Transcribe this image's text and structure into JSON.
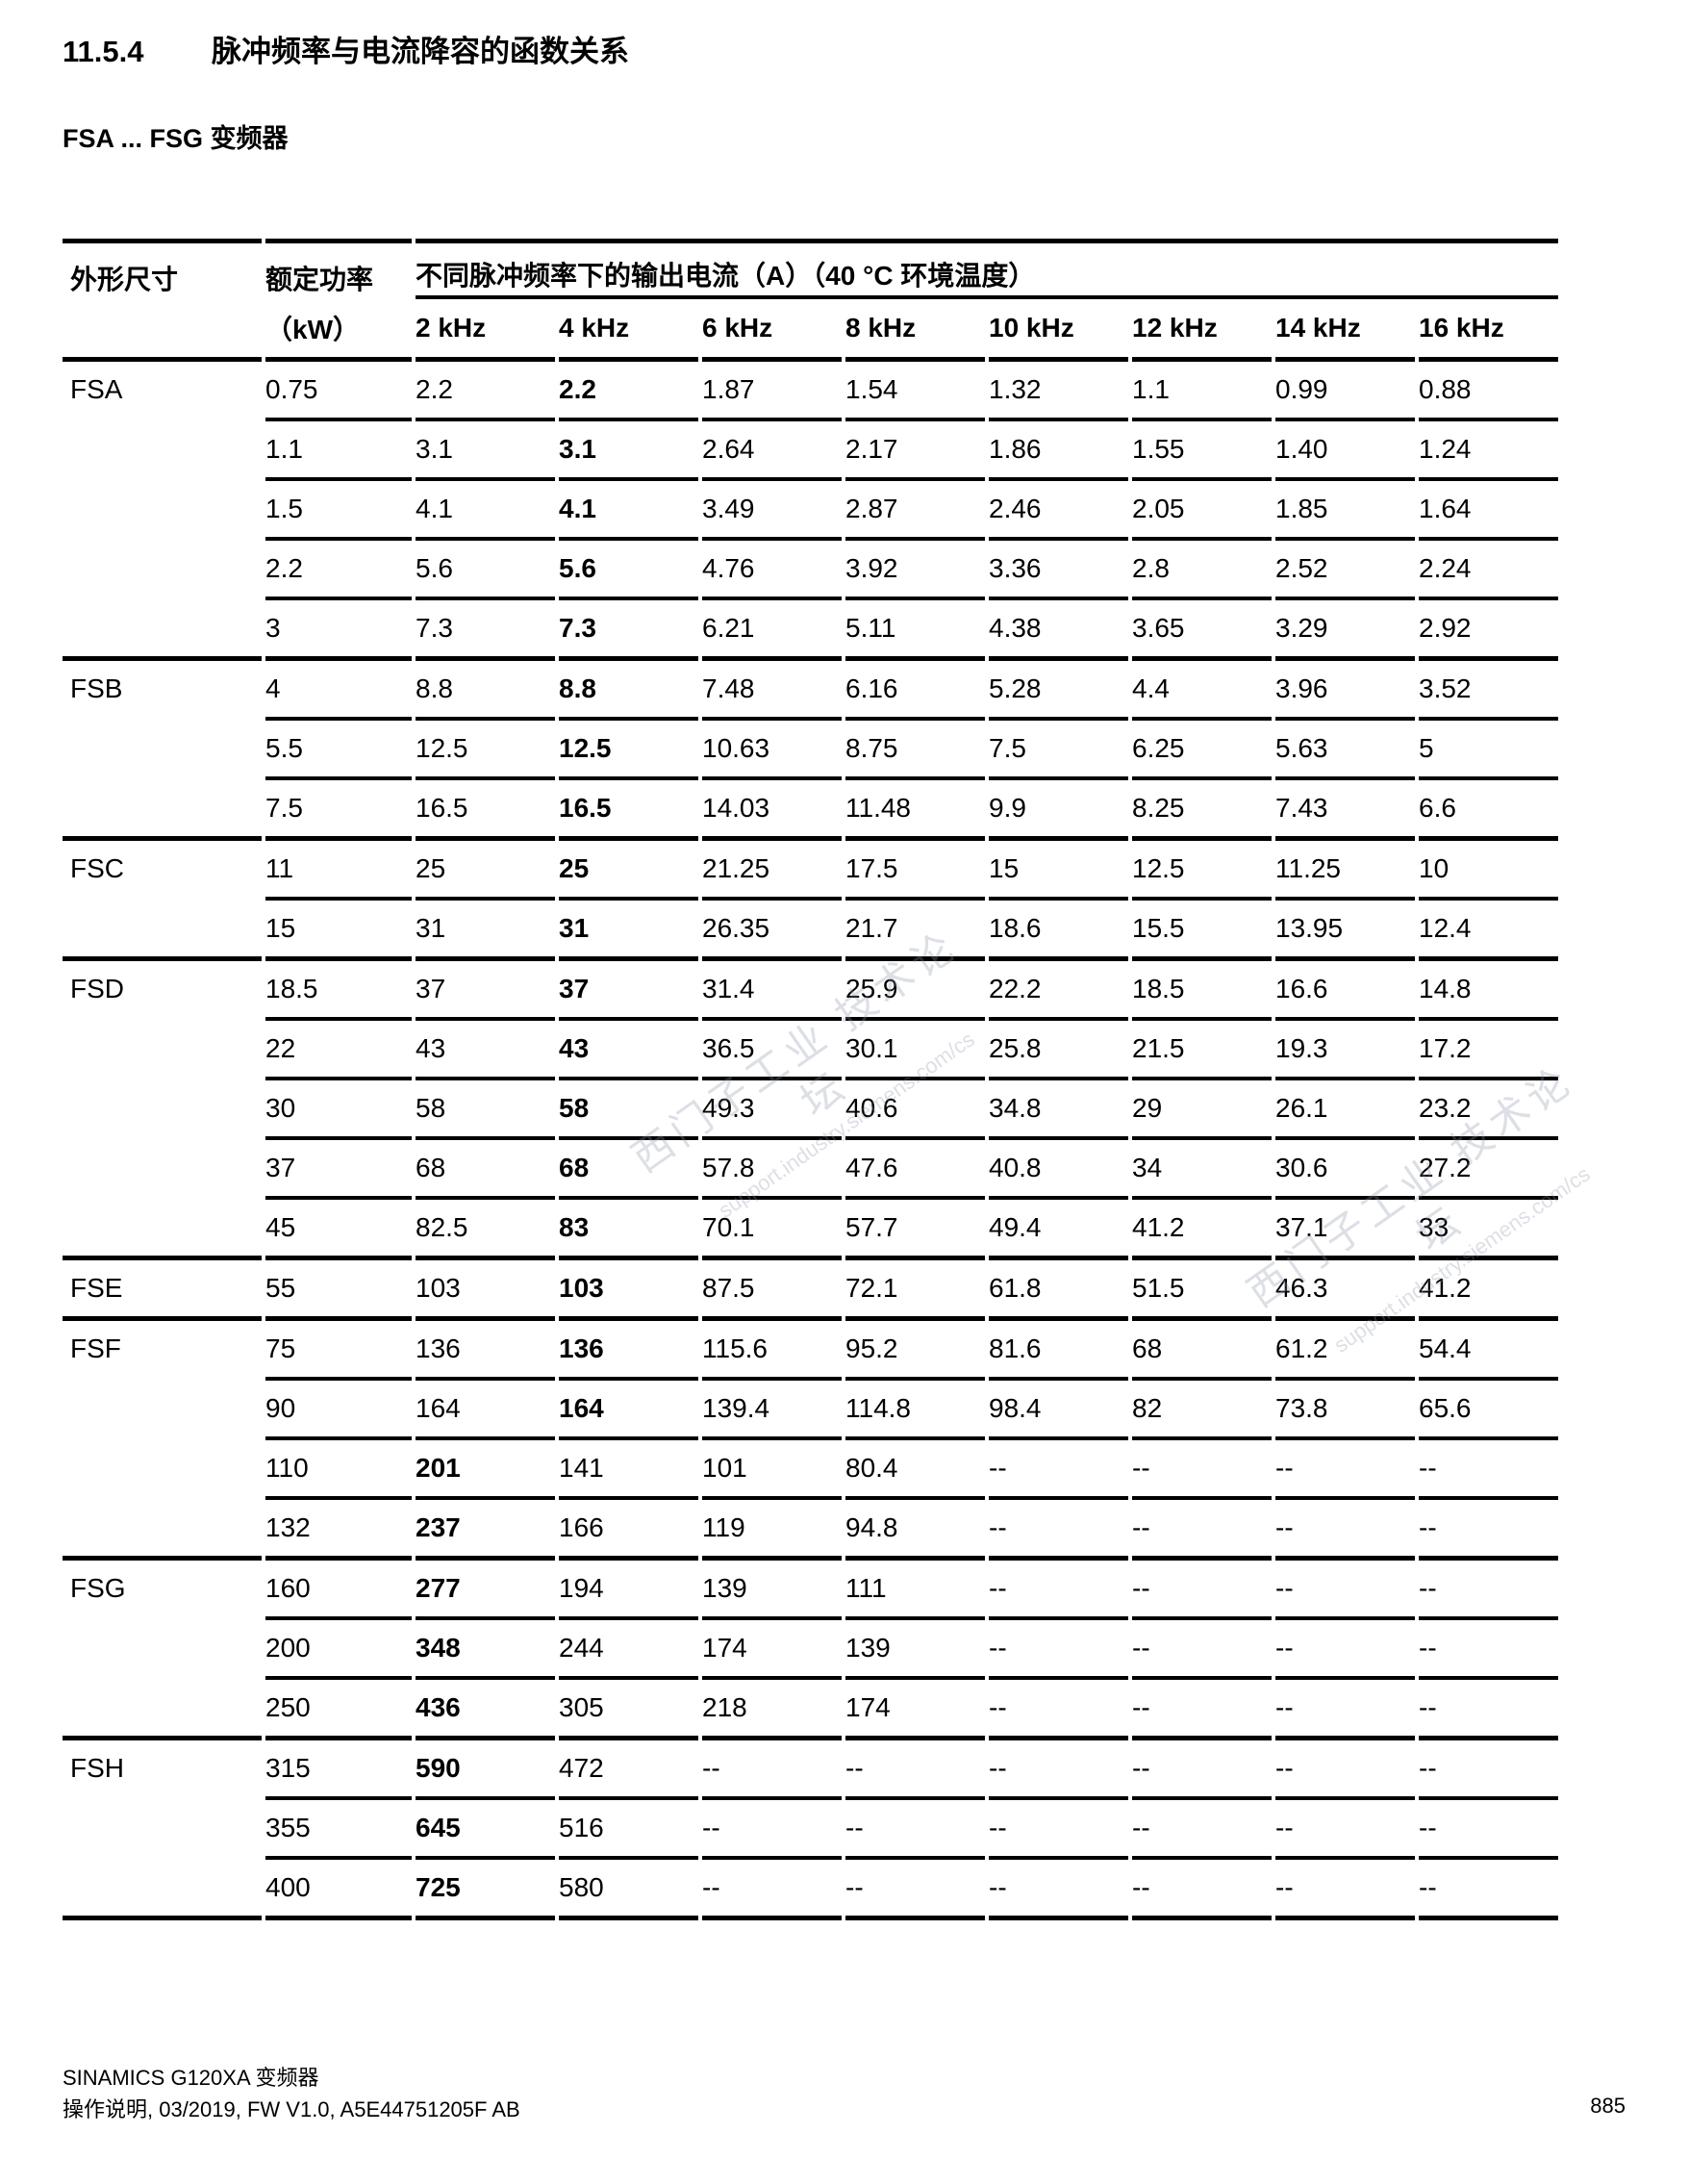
{
  "page": {
    "section_number": "11.5.4",
    "section_title": "脉冲频率与电流降容的函数关系",
    "subtitle": "FSA ... FSG 变频器",
    "footer_line1": "SINAMICS G120XA 变频器",
    "footer_line2": "操作说明, 03/2019, FW V1.0, A5E44751205F AB",
    "page_number": "885"
  },
  "watermark": {
    "line1": "西门子工业 技术论坛",
    "line2": "support.industry.siemens.com/cs"
  },
  "table": {
    "col_frame": "外形尺寸",
    "col_power_line1": "额定功率",
    "col_power_line2": "（kW）",
    "col_span": "不同脉冲频率下的输出电流（A）（40 °C 环境温度）",
    "freq_headers": [
      "2 kHz",
      "4 kHz",
      "6 kHz",
      "8 kHz",
      "10 kHz",
      "12 kHz",
      "14 kHz",
      "16 kHz"
    ],
    "groups": [
      {
        "frame": "FSA",
        "rows": [
          {
            "power": "0.75",
            "bold": 1,
            "values": [
              "2.2",
              "2.2",
              "1.87",
              "1.54",
              "1.32",
              "1.1",
              "0.99",
              "0.88"
            ]
          },
          {
            "power": "1.1",
            "bold": 1,
            "values": [
              "3.1",
              "3.1",
              "2.64",
              "2.17",
              "1.86",
              "1.55",
              "1.40",
              "1.24"
            ]
          },
          {
            "power": "1.5",
            "bold": 1,
            "values": [
              "4.1",
              "4.1",
              "3.49",
              "2.87",
              "2.46",
              "2.05",
              "1.85",
              "1.64"
            ]
          },
          {
            "power": "2.2",
            "bold": 1,
            "values": [
              "5.6",
              "5.6",
              "4.76",
              "3.92",
              "3.36",
              "2.8",
              "2.52",
              "2.24"
            ]
          },
          {
            "power": "3",
            "bold": 1,
            "values": [
              "7.3",
              "7.3",
              "6.21",
              "5.11",
              "4.38",
              "3.65",
              "3.29",
              "2.92"
            ]
          }
        ]
      },
      {
        "frame": "FSB",
        "rows": [
          {
            "power": "4",
            "bold": 1,
            "values": [
              "8.8",
              "8.8",
              "7.48",
              "6.16",
              "5.28",
              "4.4",
              "3.96",
              "3.52"
            ]
          },
          {
            "power": "5.5",
            "bold": 1,
            "values": [
              "12.5",
              "12.5",
              "10.63",
              "8.75",
              "7.5",
              "6.25",
              "5.63",
              "5"
            ]
          },
          {
            "power": "7.5",
            "bold": 1,
            "values": [
              "16.5",
              "16.5",
              "14.03",
              "11.48",
              "9.9",
              "8.25",
              "7.43",
              "6.6"
            ]
          }
        ]
      },
      {
        "frame": "FSC",
        "rows": [
          {
            "power": "11",
            "bold": 1,
            "values": [
              "25",
              "25",
              "21.25",
              "17.5",
              "15",
              "12.5",
              "11.25",
              "10"
            ]
          },
          {
            "power": "15",
            "bold": 1,
            "values": [
              "31",
              "31",
              "26.35",
              "21.7",
              "18.6",
              "15.5",
              "13.95",
              "12.4"
            ]
          }
        ]
      },
      {
        "frame": "FSD",
        "rows": [
          {
            "power": "18.5",
            "bold": 1,
            "values": [
              "37",
              "37",
              "31.4",
              "25.9",
              "22.2",
              "18.5",
              "16.6",
              "14.8"
            ]
          },
          {
            "power": "22",
            "bold": 1,
            "values": [
              "43",
              "43",
              "36.5",
              "30.1",
              "25.8",
              "21.5",
              "19.3",
              "17.2"
            ]
          },
          {
            "power": "30",
            "bold": 1,
            "values": [
              "58",
              "58",
              "49.3",
              "40.6",
              "34.8",
              "29",
              "26.1",
              "23.2"
            ]
          },
          {
            "power": "37",
            "bold": 1,
            "values": [
              "68",
              "68",
              "57.8",
              "47.6",
              "40.8",
              "34",
              "30.6",
              "27.2"
            ]
          },
          {
            "power": "45",
            "bold": 1,
            "values": [
              "82.5",
              "83",
              "70.1",
              "57.7",
              "49.4",
              "41.2",
              "37.1",
              "33"
            ]
          }
        ]
      },
      {
        "frame": "FSE",
        "rows": [
          {
            "power": "55",
            "bold": 1,
            "values": [
              "103",
              "103",
              "87.5",
              "72.1",
              "61.8",
              "51.5",
              "46.3",
              "41.2"
            ]
          }
        ]
      },
      {
        "frame": "FSF",
        "rows": [
          {
            "power": "75",
            "bold": 1,
            "values": [
              "136",
              "136",
              "115.6",
              "95.2",
              "81.6",
              "68",
              "61.2",
              "54.4"
            ]
          },
          {
            "power": "90",
            "bold": 1,
            "values": [
              "164",
              "164",
              "139.4",
              "114.8",
              "98.4",
              "82",
              "73.8",
              "65.6"
            ]
          },
          {
            "power": "110",
            "bold": 0,
            "values": [
              "201",
              "141",
              "101",
              "80.4",
              "--",
              "--",
              "--",
              "--"
            ]
          },
          {
            "power": "132",
            "bold": 0,
            "values": [
              "237",
              "166",
              "119",
              "94.8",
              "--",
              "--",
              "--",
              "--"
            ]
          }
        ]
      },
      {
        "frame": "FSG",
        "rows": [
          {
            "power": "160",
            "bold": 0,
            "values": [
              "277",
              "194",
              "139",
              "111",
              "--",
              "--",
              "--",
              "--"
            ]
          },
          {
            "power": "200",
            "bold": 0,
            "values": [
              "348",
              "244",
              "174",
              "139",
              "--",
              "--",
              "--",
              "--"
            ]
          },
          {
            "power": "250",
            "bold": 0,
            "values": [
              "436",
              "305",
              "218",
              "174",
              "--",
              "--",
              "--",
              "--"
            ]
          }
        ]
      },
      {
        "frame": "FSH",
        "rows": [
          {
            "power": "315",
            "bold": 0,
            "values": [
              "590",
              "472",
              "--",
              "--",
              "--",
              "--",
              "--",
              "--"
            ]
          },
          {
            "power": "355",
            "bold": 0,
            "values": [
              "645",
              "516",
              "--",
              "--",
              "--",
              "--",
              "--",
              "--"
            ]
          },
          {
            "power": "400",
            "bold": 0,
            "values": [
              "725",
              "580",
              "--",
              "--",
              "--",
              "--",
              "--",
              "--"
            ]
          }
        ]
      }
    ]
  }
}
